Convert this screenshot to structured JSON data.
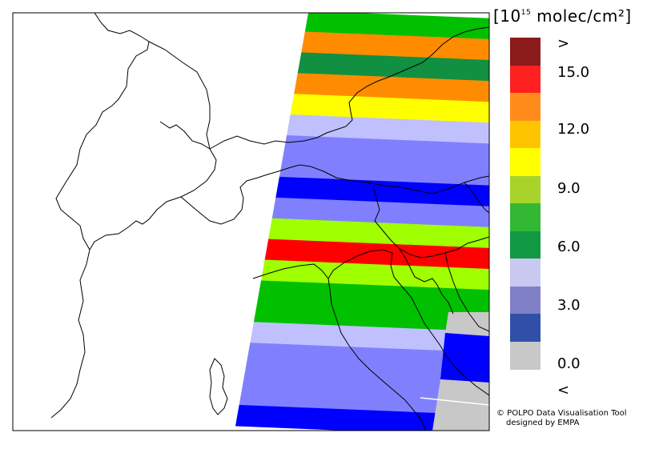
{
  "legend": {
    "unit_prefix": "[10",
    "unit_exponent": "15",
    "unit_suffix": " molec/cm²]",
    "tick_labels": [
      ">",
      "15.0",
      "12.0",
      "9.0",
      "6.0",
      "3.0",
      "0.0",
      "<"
    ],
    "colors": [
      "#8b1a1a",
      "#ff2020",
      "#ff8c1a",
      "#ffc400",
      "#ffff00",
      "#a8d32a",
      "#33b833",
      "#119944",
      "#c8c8f0",
      "#8080c8",
      "#3050a8",
      "#c8c8c8"
    ]
  },
  "credit": {
    "line1": "© POLPO Data Visualisation Tool",
    "line2": "designed by EMPA"
  },
  "map_data": {
    "band_colors": [
      "#00c000",
      "#ff8c00",
      "#109040",
      "#ff8c00",
      "#ffff00",
      "#c0c0ff",
      "#8080ff",
      "#8080ff",
      "#0000ff",
      "#8080ff",
      "#a0ff00",
      "#ff0000",
      "#a0ff00",
      "#00c000",
      "#00c000",
      "#c0c0ff",
      "#8080ff",
      "#8080ff",
      "#8080ff",
      "#0000ff"
    ]
  }
}
